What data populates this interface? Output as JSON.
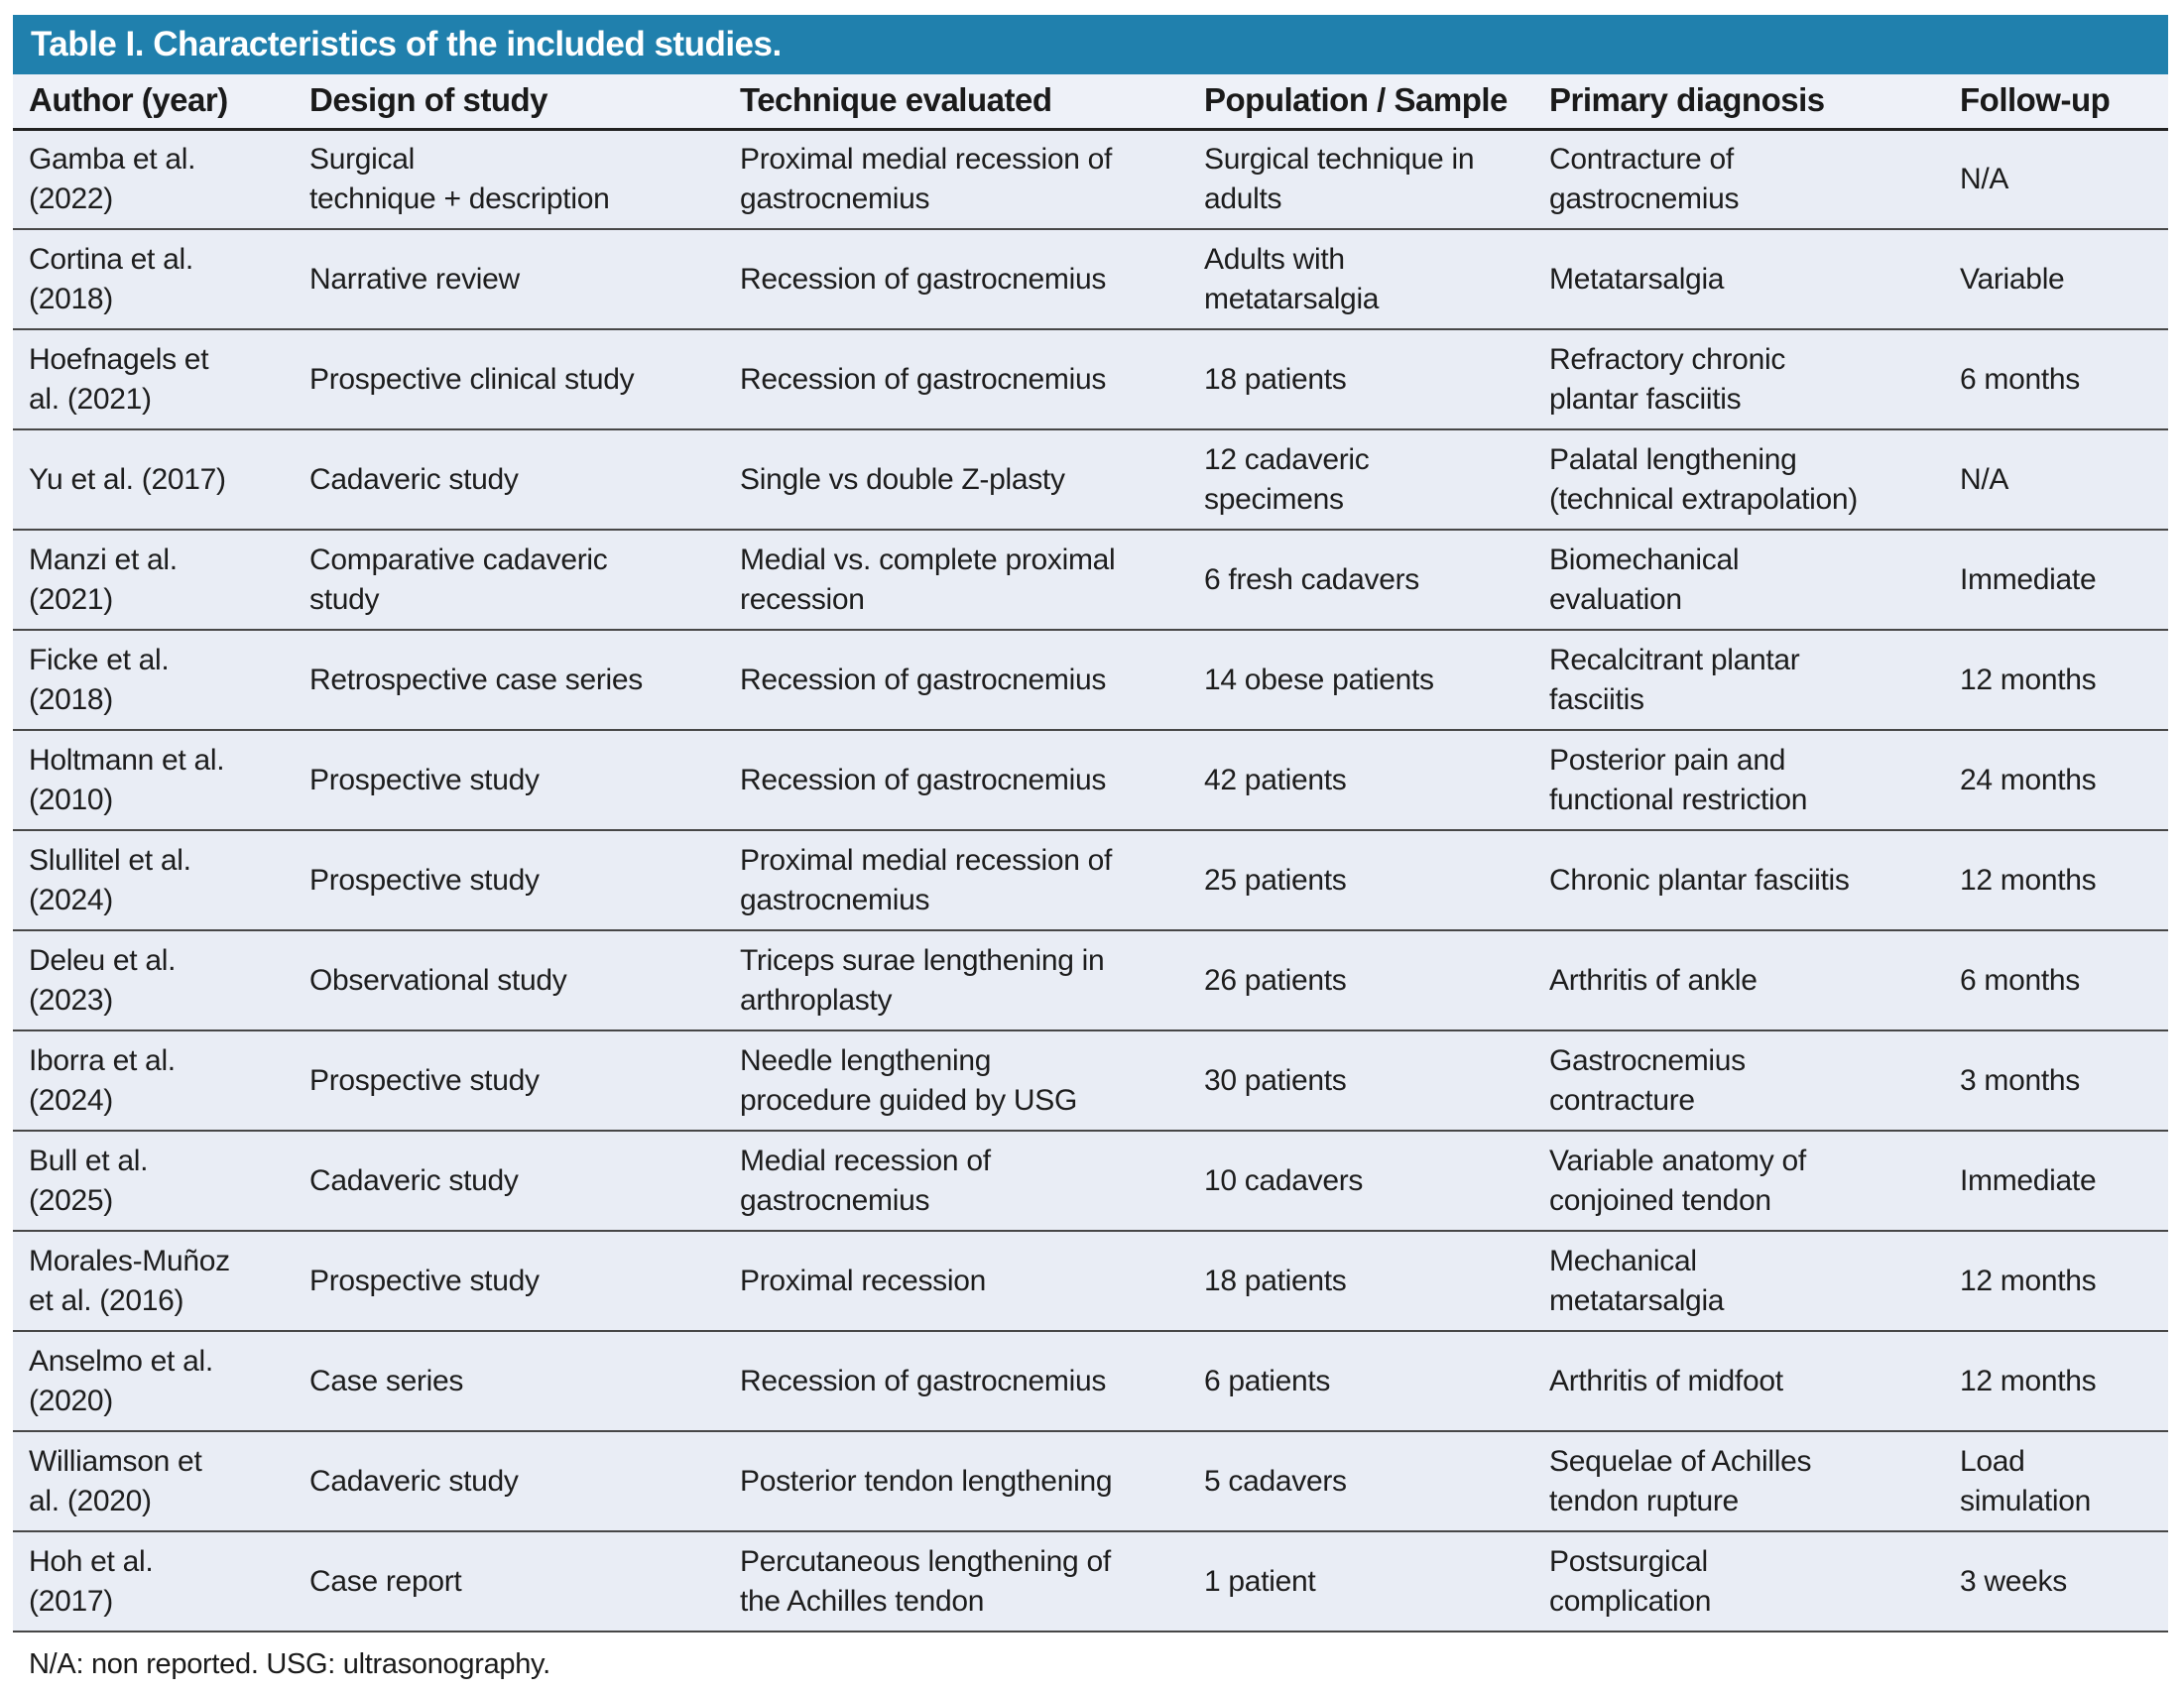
{
  "title": "Table I. Characteristics of the included studies.",
  "footnote": "N/A: non reported. USG: ultrasonography.",
  "colors": {
    "title_bar_background": "#2080ad",
    "title_text": "#ffffff",
    "row_background": "#e9edf5",
    "header_row_background": "#eef1f8",
    "divider_line": "#474747",
    "body_text": "#1d1d1d"
  },
  "table": {
    "columns": [
      "Author (year)",
      "Design of study",
      "Technique evaluated",
      "Population / Sample",
      "Primary diagnosis",
      "Follow-up"
    ],
    "rows": [
      [
        "Gamba et al.\n(2022)",
        "Surgical\ntechnique + description",
        "Proximal medial recession of\ngastrocnemius",
        "Surgical technique in\nadults",
        "Contracture of\ngastrocnemius",
        "N/A"
      ],
      [
        "Cortina et al.\n(2018)",
        "Narrative review",
        "Recession of gastrocnemius",
        "Adults with\nmetatarsalgia",
        "Metatarsalgia",
        "Variable"
      ],
      [
        "Hoefnagels et\nal. (2021)",
        "Prospective clinical study",
        "Recession of gastrocnemius",
        "18 patients",
        "Refractory chronic\nplantar fasciitis",
        "6 months"
      ],
      [
        "Yu et al. (2017)",
        "Cadaveric study",
        "Single vs double Z-plasty",
        "12 cadaveric\nspecimens",
        "Palatal lengthening\n(technical extrapolation)",
        "N/A"
      ],
      [
        "Manzi et al.\n(2021)",
        "Comparative cadaveric\nstudy",
        "Medial vs. complete proximal\nrecession",
        "6 fresh cadavers",
        "Biomechanical\nevaluation",
        "Immediate"
      ],
      [
        "Ficke et al.\n(2018)",
        "Retrospective case series",
        "Recession of gastrocnemius",
        "14 obese patients",
        "Recalcitrant plantar\nfasciitis",
        "12 months"
      ],
      [
        "Holtmann et al.\n(2010)",
        "Prospective study",
        "Recession of gastrocnemius",
        "42 patients",
        "Posterior pain and\nfunctional restriction",
        "24 months"
      ],
      [
        "Slullitel et al.\n(2024)",
        "Prospective study",
        "Proximal medial recession of\ngastrocnemius",
        "25 patients",
        "Chronic plantar fasciitis",
        "12 months"
      ],
      [
        "Deleu et al.\n(2023)",
        "Observational study",
        "Triceps surae lengthening in\narthroplasty",
        "26 patients",
        "Arthritis of ankle",
        "6 months"
      ],
      [
        "Iborra et al.\n(2024)",
        "Prospective study",
        "Needle lengthening\nprocedure guided by USG",
        "30 patients",
        "Gastrocnemius\ncontracture",
        "3 months"
      ],
      [
        "Bull et al.\n(2025)",
        "Cadaveric study",
        "Medial recession of\ngastrocnemius",
        "10 cadavers",
        "Variable anatomy of\nconjoined tendon",
        "Immediate"
      ],
      [
        "Morales-Muñoz\net al. (2016)",
        "Prospective study",
        "Proximal recession",
        "18 patients",
        "Mechanical\nmetatarsalgia",
        "12 months"
      ],
      [
        "Anselmo et al.\n(2020)",
        "Case series",
        "Recession of gastrocnemius",
        "6 patients",
        "Arthritis of midfoot",
        "12 months"
      ],
      [
        "Williamson et\nal. (2020)",
        "Cadaveric study",
        "Posterior tendon lengthening",
        "5 cadavers",
        "Sequelae of Achilles\ntendon rupture",
        "Load\nsimulation"
      ],
      [
        "Hoh et al.\n(2017)",
        "Case report",
        "Percutaneous lengthening of\nthe Achilles tendon",
        "1 patient",
        "Postsurgical\ncomplication",
        "3 weeks"
      ]
    ]
  }
}
